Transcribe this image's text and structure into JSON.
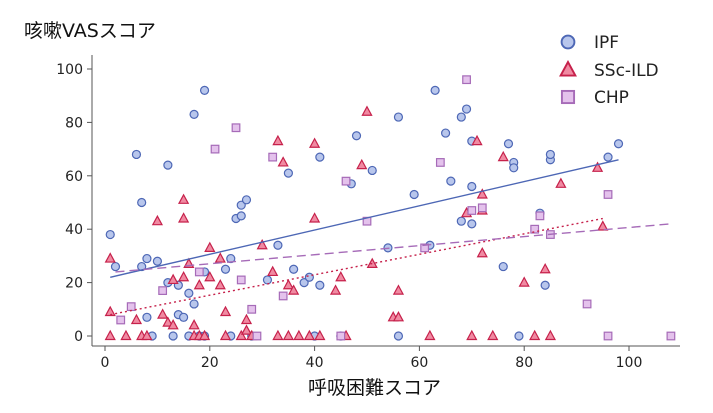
{
  "chart_data": {
    "type": "scatter",
    "ylabel": "咳嗽VASスコア",
    "xlabel": "呼吸困難スコア",
    "xlim": [
      0,
      110
    ],
    "ylim": [
      0,
      100
    ],
    "xticks": [
      0,
      20,
      40,
      60,
      80,
      100
    ],
    "yticks": [
      0,
      20,
      40,
      60,
      80,
      100
    ],
    "legend_position": "top-right",
    "series": [
      {
        "name": "IPF",
        "marker": "circle",
        "fill": "#b8c6ec",
        "stroke": "#4d67b5",
        "points": [
          [
            1,
            38
          ],
          [
            2,
            26
          ],
          [
            6,
            68
          ],
          [
            7,
            50
          ],
          [
            7,
            26
          ],
          [
            8,
            29
          ],
          [
            8,
            7
          ],
          [
            9,
            0
          ],
          [
            10,
            28
          ],
          [
            12,
            64
          ],
          [
            12,
            20
          ],
          [
            13,
            0
          ],
          [
            14,
            8
          ],
          [
            14,
            19
          ],
          [
            15,
            7
          ],
          [
            16,
            16
          ],
          [
            16,
            0
          ],
          [
            17,
            83
          ],
          [
            17,
            12
          ],
          [
            18,
            0
          ],
          [
            19,
            92
          ],
          [
            19,
            24
          ],
          [
            19,
            0
          ],
          [
            23,
            25
          ],
          [
            24,
            0
          ],
          [
            24,
            29
          ],
          [
            25,
            44
          ],
          [
            26,
            45
          ],
          [
            26,
            49
          ],
          [
            27,
            51
          ],
          [
            28,
            0
          ],
          [
            31,
            21
          ],
          [
            33,
            34
          ],
          [
            35,
            61
          ],
          [
            36,
            25
          ],
          [
            38,
            20
          ],
          [
            39,
            22
          ],
          [
            40,
            0
          ],
          [
            41,
            19
          ],
          [
            41,
            67
          ],
          [
            45,
            0
          ],
          [
            47,
            57
          ],
          [
            48,
            75
          ],
          [
            51,
            62
          ],
          [
            54,
            33
          ],
          [
            56,
            82
          ],
          [
            56,
            0
          ],
          [
            59,
            53
          ],
          [
            62,
            34
          ],
          [
            63,
            92
          ],
          [
            65,
            76
          ],
          [
            66,
            58
          ],
          [
            68,
            43
          ],
          [
            68,
            82
          ],
          [
            69,
            85
          ],
          [
            70,
            56
          ],
          [
            70,
            73
          ],
          [
            70,
            42
          ],
          [
            76,
            26
          ],
          [
            77,
            72
          ],
          [
            78,
            65
          ],
          [
            78,
            63
          ],
          [
            79,
            0
          ],
          [
            83,
            46
          ],
          [
            84,
            19
          ],
          [
            85,
            66
          ],
          [
            85,
            68
          ],
          [
            96,
            67
          ],
          [
            98,
            72
          ]
        ],
        "trend": [
          [
            1,
            22
          ],
          [
            98,
            66
          ]
        ]
      },
      {
        "name": "SSc-ILD",
        "marker": "triangle",
        "fill": "#f08aa2",
        "stroke": "#c6214b",
        "points": [
          [
            1,
            29
          ],
          [
            1,
            9
          ],
          [
            1,
            0
          ],
          [
            4,
            0
          ],
          [
            6,
            6
          ],
          [
            7,
            0
          ],
          [
            8,
            0
          ],
          [
            10,
            43
          ],
          [
            11,
            8
          ],
          [
            12,
            5
          ],
          [
            13,
            4
          ],
          [
            13,
            21
          ],
          [
            15,
            22
          ],
          [
            15,
            44
          ],
          [
            15,
            51
          ],
          [
            16,
            27
          ],
          [
            17,
            0
          ],
          [
            17,
            4
          ],
          [
            18,
            0
          ],
          [
            18,
            19
          ],
          [
            19,
            0
          ],
          [
            20,
            22
          ],
          [
            20,
            33
          ],
          [
            22,
            29
          ],
          [
            22,
            19
          ],
          [
            23,
            0
          ],
          [
            23,
            9
          ],
          [
            26,
            0
          ],
          [
            27,
            2
          ],
          [
            27,
            6
          ],
          [
            28,
            0
          ],
          [
            30,
            34
          ],
          [
            32,
            24
          ],
          [
            33,
            0
          ],
          [
            33,
            73
          ],
          [
            34,
            65
          ],
          [
            35,
            0
          ],
          [
            35,
            19
          ],
          [
            36,
            17
          ],
          [
            37,
            0
          ],
          [
            39,
            0
          ],
          [
            40,
            72
          ],
          [
            40,
            44
          ],
          [
            41,
            0
          ],
          [
            44,
            17
          ],
          [
            45,
            22
          ],
          [
            46,
            0
          ],
          [
            49,
            64
          ],
          [
            50,
            84
          ],
          [
            51,
            27
          ],
          [
            55,
            7
          ],
          [
            56,
            7
          ],
          [
            56,
            17
          ],
          [
            62,
            0
          ],
          [
            69,
            46
          ],
          [
            70,
            0
          ],
          [
            71,
            73
          ],
          [
            72,
            53
          ],
          [
            72,
            47
          ],
          [
            72,
            31
          ],
          [
            74,
            0
          ],
          [
            76,
            67
          ],
          [
            80,
            20
          ],
          [
            82,
            0
          ],
          [
            84,
            25
          ],
          [
            85,
            0
          ],
          [
            87,
            57
          ],
          [
            94,
            63
          ],
          [
            95,
            41
          ]
        ],
        "trend": [
          [
            1,
            8
          ],
          [
            95,
            44
          ]
        ]
      },
      {
        "name": "CHP",
        "marker": "square",
        "fill": "#e4c2ec",
        "stroke": "#a66bb8",
        "points": [
          [
            3,
            6
          ],
          [
            5,
            11
          ],
          [
            11,
            17
          ],
          [
            18,
            24
          ],
          [
            21,
            70
          ],
          [
            25,
            78
          ],
          [
            26,
            21
          ],
          [
            28,
            10
          ],
          [
            29,
            0
          ],
          [
            32,
            67
          ],
          [
            34,
            15
          ],
          [
            45,
            0
          ],
          [
            46,
            58
          ],
          [
            50,
            43
          ],
          [
            61,
            33
          ],
          [
            64,
            65
          ],
          [
            69,
            96
          ],
          [
            70,
            47
          ],
          [
            72,
            48
          ],
          [
            82,
            40
          ],
          [
            83,
            45
          ],
          [
            85,
            38
          ],
          [
            92,
            12
          ],
          [
            96,
            53
          ],
          [
            96,
            0
          ],
          [
            108,
            0
          ]
        ],
        "trend": [
          [
            2,
            24
          ],
          [
            108,
            42
          ]
        ]
      }
    ]
  }
}
